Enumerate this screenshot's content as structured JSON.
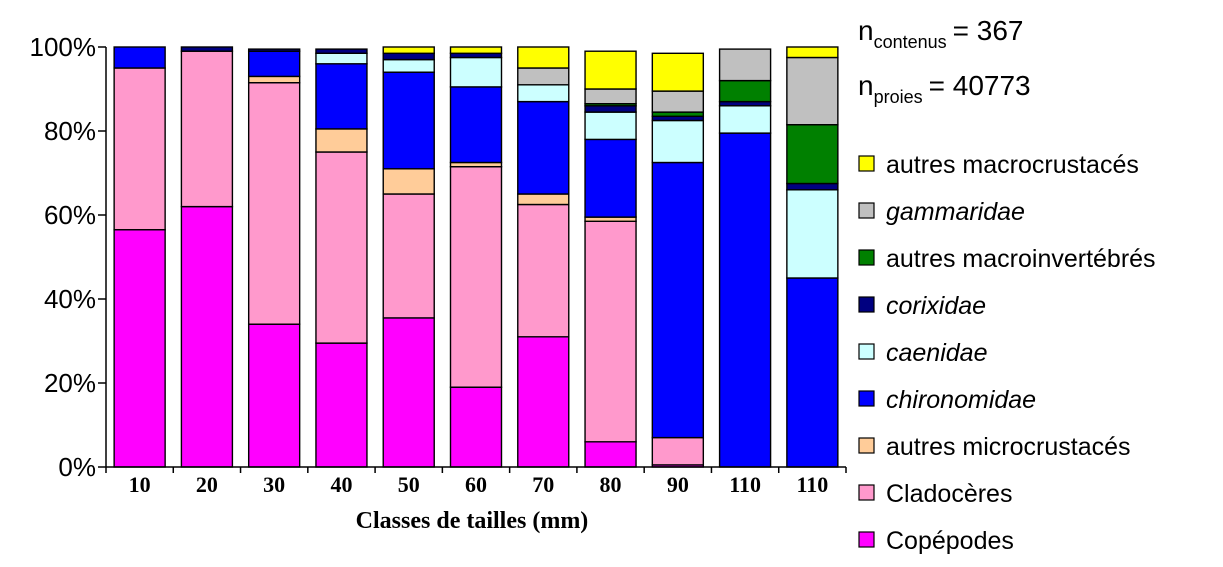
{
  "chart_data": {
    "type": "bar",
    "stacked": true,
    "normalized": true,
    "xlabel": "Classes de tailles (mm)",
    "ylabel": "",
    "ylim": [
      0,
      100
    ],
    "yticks": [
      "0%",
      "20%",
      "40%",
      "60%",
      "80%",
      "100%"
    ],
    "categories": [
      "10",
      "20",
      "30",
      "40",
      "50",
      "60",
      "70",
      "80",
      "90",
      "110",
      "110"
    ],
    "legend_position": "right",
    "annotations": {
      "n1": {
        "base": "n",
        "sub": "contenus",
        "value": "= 367"
      },
      "n2": {
        "base": "n",
        "sub": "proies",
        "value": "= 40773"
      }
    },
    "series": [
      {
        "name": "Copépodes",
        "italic": false,
        "color": "#FF00FF",
        "values": [
          56.5,
          62,
          34,
          29.5,
          35.5,
          19,
          31,
          6,
          0.5,
          0,
          0
        ]
      },
      {
        "name": "Cladocères",
        "italic": false,
        "color": "#FF99CC",
        "values": [
          38.5,
          37,
          57.5,
          45.5,
          29.5,
          52.5,
          31.5,
          52.5,
          6.5,
          0,
          0
        ]
      },
      {
        "name": "autres microcrustacés",
        "italic": false,
        "color": "#FFCC99",
        "values": [
          0,
          0,
          1.5,
          5.5,
          6,
          1,
          2.5,
          1,
          0,
          0,
          0
        ]
      },
      {
        "name": "chironomidae",
        "italic": true,
        "color": "#0000FF",
        "values": [
          5,
          0,
          6,
          15.5,
          23,
          18,
          22,
          18.5,
          65.5,
          79.5,
          45
        ]
      },
      {
        "name": "caenidae",
        "italic": true,
        "color": "#CCFFFF",
        "values": [
          0,
          0,
          0,
          2.5,
          3,
          7,
          4,
          6.5,
          10,
          6.5,
          21
        ]
      },
      {
        "name": "corixidae",
        "italic": true,
        "color": "#000080",
        "values": [
          0,
          1,
          0.5,
          1,
          1.5,
          1,
          0,
          1.5,
          1,
          1,
          1.5
        ]
      },
      {
        "name": "autres macroinvertébrés",
        "italic": false,
        "color": "#008000",
        "values": [
          0,
          0,
          0,
          0,
          0,
          0,
          0,
          0.5,
          1,
          5,
          14
        ]
      },
      {
        "name": "gammaridae",
        "italic": true,
        "color": "#C0C0C0",
        "values": [
          0,
          0,
          0,
          0,
          0,
          0,
          4,
          3.5,
          5,
          7.5,
          16
        ]
      },
      {
        "name": "autres macrocrustacés",
        "italic": false,
        "color": "#FFFF00",
        "values": [
          0,
          0,
          0,
          0,
          1.5,
          1.5,
          5,
          9,
          9,
          0,
          2.5
        ]
      }
    ]
  }
}
